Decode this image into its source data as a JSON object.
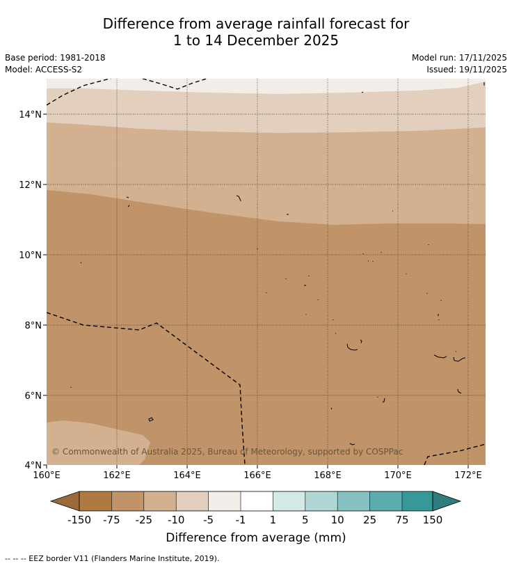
{
  "title": {
    "line1": "Difference from average rainfall forecast for",
    "line2": "1 to 14 December 2025"
  },
  "meta": {
    "base_period": "Base period: 1981-2018",
    "model": "Model: ACCESS-S2",
    "model_run": "Model run: 17/11/2025",
    "issued": "Issued: 19/11/2025"
  },
  "map": {
    "lat_labels": [
      "14°N",
      "12°N",
      "10°N",
      "8°N",
      "6°N",
      "4°N"
    ],
    "lon_labels": [
      "160°E",
      "162°E",
      "164°E",
      "166°E",
      "168°E",
      "170°E",
      "172°E"
    ],
    "copyright": "© Commonwealth of Australia 2025, Bureau of Meteorology, supported by COSPPac"
  },
  "colorbar": {
    "labels": [
      "-150",
      "-75",
      "-25",
      "-10",
      "-5",
      "-1",
      "1",
      "5",
      "10",
      "25",
      "75",
      "150"
    ],
    "colors": [
      "#9b6a3a",
      "#af7a42",
      "#c09468",
      "#d2b090",
      "#e2cfbe",
      "#f2eee7",
      "#ffffff",
      "#d3eae8",
      "#aed6d4",
      "#85c2c1",
      "#5aadac",
      "#349998",
      "#2e7e7e"
    ],
    "title": "Difference from average (mm)"
  },
  "footnote": "--  --  -- EEZ border V11 (Flanders Marine Institute, 2019)."
}
